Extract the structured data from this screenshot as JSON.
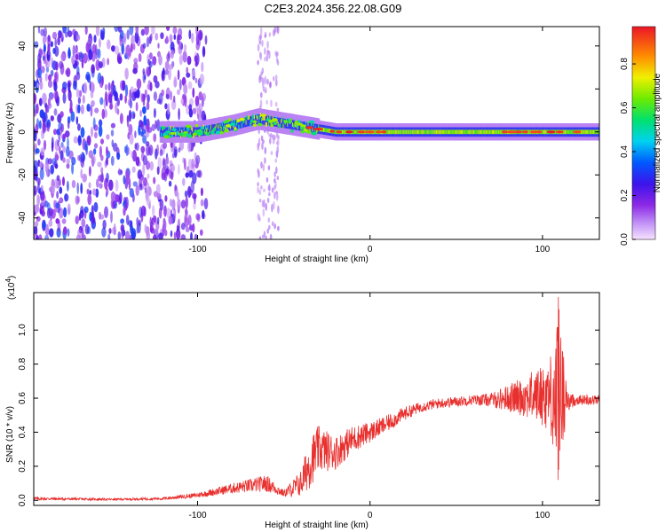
{
  "title": "C2E3.2024.356.22.08.G09",
  "chart_data": [
    {
      "type": "heatmap",
      "xlabel": "Height of straight line (km)",
      "ylabel": "Frequency (Hz)",
      "xlim": [
        -195,
        133
      ],
      "ylim": [
        -50,
        49
      ],
      "xticks": [
        -100,
        0,
        100
      ],
      "yticks": [
        -40,
        -20,
        0,
        20,
        40
      ],
      "colorbar": {
        "label": "Normalized spectral amplitude",
        "range": [
          0,
          0.97
        ],
        "ticks": [
          0.0,
          0.2,
          0.4,
          0.6,
          0.8
        ]
      },
      "ridge": {
        "x": [
          -120,
          -100,
          -80,
          -65,
          -50,
          -35,
          -20,
          0,
          50,
          100,
          120,
          133
        ],
        "freq_hz": [
          0,
          0,
          3,
          6,
          4,
          2,
          0,
          0,
          0,
          0,
          0,
          0
        ]
      },
      "noise_region_x": [
        -195,
        -95
      ]
    },
    {
      "type": "line",
      "xlabel": "Height of straight line (km)",
      "ylabel": "SNR (10 * v/v)",
      "yscale_label_base": "(x10",
      "yscale_label_exp": "4",
      "yscale_label_close": ")",
      "xlim": [
        -195,
        133
      ],
      "ylim": [
        -0.03,
        1.22
      ],
      "xticks": [
        -100,
        0,
        100
      ],
      "yticks": [
        0.0,
        0.2,
        0.4,
        0.6,
        0.8,
        1.0
      ],
      "color": "#e8302e",
      "envelope": {
        "x": [
          -195,
          -150,
          -120,
          -100,
          -80,
          -60,
          -50,
          -40,
          -35,
          -30,
          -20,
          -10,
          0,
          10,
          20,
          30,
          40,
          50,
          60,
          70,
          80,
          90,
          100,
          105,
          108,
          110,
          112,
          115,
          120,
          133
        ],
        "y": [
          0.01,
          0.005,
          0.01,
          0.03,
          0.07,
          0.1,
          0.04,
          0.1,
          0.22,
          0.3,
          0.28,
          0.36,
          0.4,
          0.45,
          0.51,
          0.55,
          0.57,
          0.58,
          0.59,
          0.59,
          0.6,
          0.61,
          0.62,
          0.62,
          0.6,
          0.58,
          0.6,
          0.58,
          0.59,
          0.59
        ],
        "amp": [
          0.01,
          0.006,
          0.008,
          0.015,
          0.03,
          0.05,
          0.02,
          0.08,
          0.15,
          0.14,
          0.1,
          0.08,
          0.06,
          0.05,
          0.04,
          0.03,
          0.03,
          0.03,
          0.03,
          0.04,
          0.08,
          0.12,
          0.18,
          0.25,
          0.45,
          0.55,
          0.3,
          0.05,
          0.03,
          0.03
        ]
      }
    }
  ]
}
